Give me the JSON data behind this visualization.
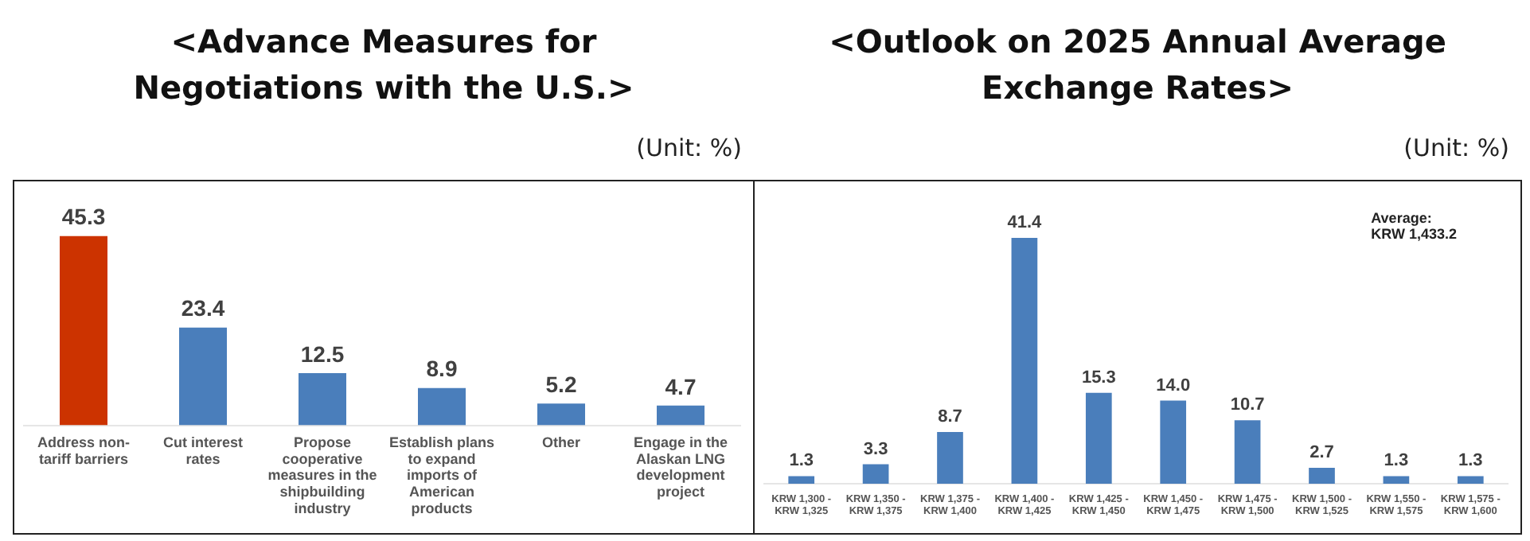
{
  "chart_data": [
    {
      "type": "bar",
      "title": "<Advance Measures for Negotiations with the U.S.>",
      "annotations": [
        "(Unit: %)"
      ],
      "categories": [
        "Address non-\ntariff barriers",
        "Cut interest\nrates",
        "Propose\ncooperative\nmeasures in the\nshipbuilding\nindustry",
        "Establish plans\nto expand\nimports of\nAmerican\nproducts",
        "Other",
        "Engage in the\nAlaskan LNG\ndevelopment\nproject"
      ],
      "values": [
        45.3,
        23.4,
        12.5,
        8.9,
        5.2,
        4.7
      ],
      "colors": [
        "#cc3300",
        "#4a7ebb",
        "#4a7ebb",
        "#4a7ebb",
        "#4a7ebb",
        "#4a7ebb"
      ],
      "data_labels": true,
      "legend": false
    },
    {
      "type": "bar",
      "title": "<Outlook on 2025 Annual Average Exchange Rates>",
      "annotations": [
        "(Unit: %)",
        "Average:\nKRW 1,433.2"
      ],
      "categories": [
        "KRW 1,300 -\nKRW 1,325",
        "KRW 1,350 -\nKRW 1,375",
        "KRW 1,375 -\nKRW 1,400",
        "KRW 1,400 -\nKRW 1,425",
        "KRW 1,425 -\nKRW 1,450",
        "KRW 1,450 -\nKRW 1,475",
        "KRW 1,475 -\nKRW 1,500",
        "KRW 1,500 -\nKRW 1,525",
        "KRW 1,550 -\nKRW 1,575",
        "KRW 1,575 -\nKRW 1,600"
      ],
      "values": [
        1.3,
        3.3,
        8.7,
        41.4,
        15.3,
        14.0,
        10.7,
        2.7,
        1.3,
        1.3
      ],
      "value_labels": [
        "1.3",
        "3.3",
        "8.7",
        "41.4",
        "15.3",
        "14.0",
        "10.7",
        "2.7",
        "1.3",
        "1.3"
      ],
      "color": "#4a7ebb",
      "legend": false
    }
  ]
}
